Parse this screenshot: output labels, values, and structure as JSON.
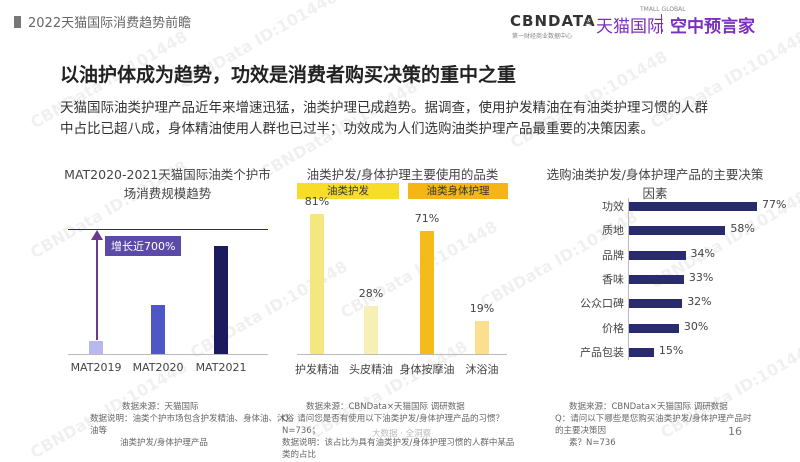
{
  "header": {
    "breadcrumb": "2022天猫国际消费趋势前瞻",
    "logo_cbndata": "CBNDATA",
    "logo_cbndata_sub": "第一财经商业数据中心",
    "logo_x": "×",
    "logo_tmall": "天猫国际",
    "logo_tmall_global": "TMALL GLOBAL",
    "logo_prophet": "空中预言家"
  },
  "title": "以油护体成为趋势，功效是消费者购买决策的重中之重",
  "description": "天猫国际油类护理产品近年来增速迅猛，油类护理已成趋势。据调查，使用护发精油在有油类护理习惯的人群中占比已超八成，身体精油使用人群也已过半；功效成为人们选购油类护理产品最重要的决策因素。",
  "watermark": "CBNData ID:101448",
  "chart_data": [
    {
      "type": "bar",
      "title": "MAT2020-2021天猫国际油类个护市场消费规模趋势",
      "categories": [
        "MAT2019",
        "MAT2020",
        "MAT2021"
      ],
      "values": [
        1,
        3.6,
        8
      ],
      "annotation": "增长近700%",
      "colors": [
        "#b8b8ef",
        "#4f57c6",
        "#1b1b5e"
      ]
    },
    {
      "type": "bar",
      "title": "油类护发/身体护理主要使用的品类",
      "groups": [
        "油类护发",
        "油类身体护理"
      ],
      "categories": [
        "护发精油",
        "头皮精油",
        "身体按摩油",
        "沐浴油"
      ],
      "values": [
        81,
        28,
        71,
        19
      ],
      "value_labels": [
        "81%",
        "28%",
        "71%",
        "19%"
      ],
      "colors": [
        "#f5e77f",
        "#f7f0b6",
        "#f5bb1a",
        "#fbdf8f"
      ]
    },
    {
      "type": "bar",
      "orientation": "horizontal",
      "title": "选购油类护发/身体护理产品的主要决策因素",
      "categories": [
        "功效",
        "质地",
        "品牌",
        "香味",
        "公众口碑",
        "价格",
        "产品包装"
      ],
      "values": [
        77,
        58,
        34,
        33,
        32,
        30,
        15
      ],
      "value_labels": [
        "77%",
        "58%",
        "34%",
        "33%",
        "32%",
        "30%",
        "15%"
      ],
      "color": "#2a2a6e"
    }
  ],
  "notes": {
    "left": {
      "line1": "数据来源：天猫国际",
      "line2": "数据说明：油类个护市场包含护发精油、身体油、沐浴油等",
      "line3": "油类护发/身体护理产品"
    },
    "middle": {
      "line1": "数据来源：CBNData×天猫国际 调研数据",
      "line2": "Q：请问您是否有使用以下油类护发/身体护理产品的习惯？N=736；",
      "line3": "数据说明：该占比为具有油类护发/身体护理习惯的人群中某品类的占比"
    },
    "right": {
      "line1": "数据来源：CBNData×天猫国际 调研数据",
      "line2": "Q：请问以下哪些是您购买油类护发/身体护理产品时的主要决策因",
      "line3": "素？N=736"
    },
    "bottom_faint": "大数据 · 全洞察"
  },
  "page_number": "16"
}
